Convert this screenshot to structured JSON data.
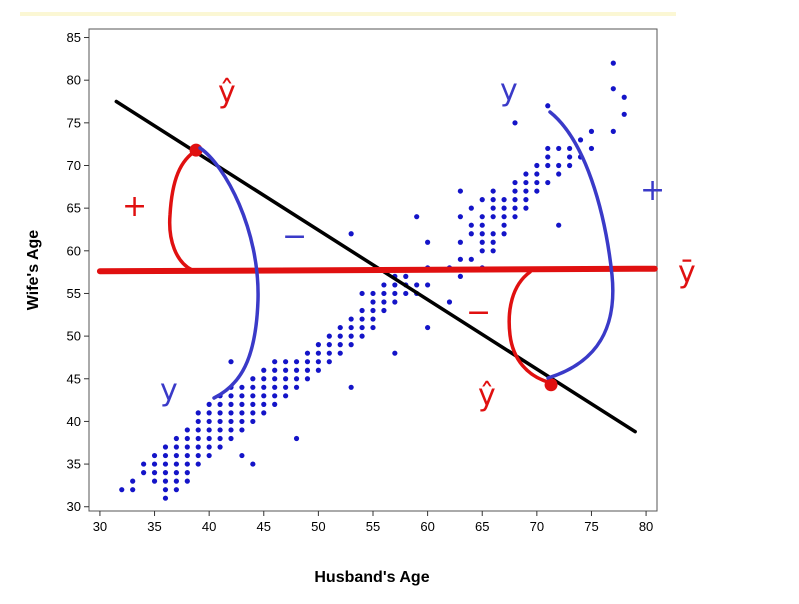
{
  "chart_data": {
    "type": "scatter",
    "xlabel": "Husband's Age",
    "ylabel": "Wife's Age",
    "xlim": [
      29,
      81
    ],
    "ylim": [
      29.5,
      86
    ],
    "xticks": [
      "30",
      "35",
      "40",
      "45",
      "50",
      "55",
      "60",
      "65",
      "70",
      "75",
      "80"
    ],
    "yticks": [
      "30",
      "35",
      "40",
      "45",
      "50",
      "55",
      "60",
      "65",
      "70",
      "75",
      "80",
      "85"
    ],
    "grid": false,
    "point_color": "#1414c8",
    "points": [
      [
        32,
        32
      ],
      [
        33,
        32
      ],
      [
        33,
        33
      ],
      [
        34,
        34
      ],
      [
        34,
        35
      ],
      [
        35,
        33
      ],
      [
        35,
        34
      ],
      [
        35,
        35
      ],
      [
        35,
        36
      ],
      [
        36,
        31
      ],
      [
        36,
        32
      ],
      [
        36,
        33
      ],
      [
        36,
        34
      ],
      [
        36,
        35
      ],
      [
        36,
        36
      ],
      [
        36,
        37
      ],
      [
        37,
        32
      ],
      [
        37,
        33
      ],
      [
        37,
        34
      ],
      [
        37,
        35
      ],
      [
        37,
        36
      ],
      [
        37,
        37
      ],
      [
        37,
        38
      ],
      [
        38,
        33
      ],
      [
        38,
        34
      ],
      [
        38,
        35
      ],
      [
        38,
        36
      ],
      [
        38,
        37
      ],
      [
        38,
        38
      ],
      [
        38,
        39
      ],
      [
        39,
        35
      ],
      [
        39,
        36
      ],
      [
        39,
        37
      ],
      [
        39,
        38
      ],
      [
        39,
        39
      ],
      [
        39,
        40
      ],
      [
        39,
        41
      ],
      [
        40,
        36
      ],
      [
        40,
        37
      ],
      [
        40,
        38
      ],
      [
        40,
        39
      ],
      [
        40,
        40
      ],
      [
        40,
        41
      ],
      [
        40,
        42
      ],
      [
        41,
        37
      ],
      [
        41,
        38
      ],
      [
        41,
        39
      ],
      [
        41,
        40
      ],
      [
        41,
        41
      ],
      [
        41,
        42
      ],
      [
        41,
        43
      ],
      [
        42,
        38
      ],
      [
        42,
        39
      ],
      [
        42,
        40
      ],
      [
        42,
        41
      ],
      [
        42,
        42
      ],
      [
        42,
        43
      ],
      [
        42,
        44
      ],
      [
        42,
        47
      ],
      [
        43,
        36
      ],
      [
        43,
        39
      ],
      [
        43,
        40
      ],
      [
        43,
        41
      ],
      [
        43,
        42
      ],
      [
        43,
        43
      ],
      [
        43,
        44
      ],
      [
        44,
        35
      ],
      [
        44,
        40
      ],
      [
        44,
        41
      ],
      [
        44,
        42
      ],
      [
        44,
        43
      ],
      [
        44,
        44
      ],
      [
        44,
        45
      ],
      [
        45,
        41
      ],
      [
        45,
        42
      ],
      [
        45,
        43
      ],
      [
        45,
        44
      ],
      [
        45,
        45
      ],
      [
        45,
        46
      ],
      [
        46,
        42
      ],
      [
        46,
        43
      ],
      [
        46,
        44
      ],
      [
        46,
        45
      ],
      [
        46,
        46
      ],
      [
        46,
        47
      ],
      [
        47,
        43
      ],
      [
        47,
        44
      ],
      [
        47,
        45
      ],
      [
        47,
        46
      ],
      [
        47,
        47
      ],
      [
        48,
        38
      ],
      [
        48,
        44
      ],
      [
        48,
        45
      ],
      [
        48,
        46
      ],
      [
        48,
        47
      ],
      [
        49,
        45
      ],
      [
        49,
        46
      ],
      [
        49,
        47
      ],
      [
        49,
        48
      ],
      [
        50,
        46
      ],
      [
        50,
        47
      ],
      [
        50,
        48
      ],
      [
        50,
        49
      ],
      [
        51,
        47
      ],
      [
        51,
        48
      ],
      [
        51,
        49
      ],
      [
        51,
        50
      ],
      [
        52,
        48
      ],
      [
        52,
        49
      ],
      [
        52,
        50
      ],
      [
        52,
        51
      ],
      [
        53,
        44
      ],
      [
        53,
        49
      ],
      [
        53,
        50
      ],
      [
        53,
        51
      ],
      [
        53,
        52
      ],
      [
        53,
        62
      ],
      [
        54,
        50
      ],
      [
        54,
        51
      ],
      [
        54,
        52
      ],
      [
        54,
        53
      ],
      [
        54,
        55
      ],
      [
        55,
        51
      ],
      [
        55,
        52
      ],
      [
        55,
        53
      ],
      [
        55,
        54
      ],
      [
        55,
        55
      ],
      [
        56,
        53
      ],
      [
        56,
        54
      ],
      [
        56,
        55
      ],
      [
        56,
        56
      ],
      [
        57,
        48
      ],
      [
        57,
        54
      ],
      [
        57,
        55
      ],
      [
        57,
        56
      ],
      [
        57,
        57
      ],
      [
        58,
        55
      ],
      [
        58,
        56
      ],
      [
        58,
        57
      ],
      [
        59,
        55
      ],
      [
        59,
        56
      ],
      [
        59,
        64
      ],
      [
        60,
        51
      ],
      [
        60,
        56
      ],
      [
        60,
        58
      ],
      [
        60,
        61
      ],
      [
        62,
        54
      ],
      [
        62,
        58
      ],
      [
        63,
        57
      ],
      [
        63,
        59
      ],
      [
        63,
        61
      ],
      [
        63,
        64
      ],
      [
        63,
        67
      ],
      [
        64,
        59
      ],
      [
        64,
        62
      ],
      [
        64,
        63
      ],
      [
        64,
        65
      ],
      [
        65,
        58
      ],
      [
        65,
        60
      ],
      [
        65,
        61
      ],
      [
        65,
        62
      ],
      [
        65,
        63
      ],
      [
        65,
        64
      ],
      [
        65,
        66
      ],
      [
        66,
        60
      ],
      [
        66,
        61
      ],
      [
        66,
        62
      ],
      [
        66,
        64
      ],
      [
        66,
        65
      ],
      [
        66,
        66
      ],
      [
        66,
        67
      ],
      [
        67,
        62
      ],
      [
        67,
        63
      ],
      [
        67,
        64
      ],
      [
        67,
        65
      ],
      [
        67,
        66
      ],
      [
        68,
        64
      ],
      [
        68,
        65
      ],
      [
        68,
        66
      ],
      [
        68,
        67
      ],
      [
        68,
        68
      ],
      [
        68,
        75
      ],
      [
        69,
        65
      ],
      [
        69,
        66
      ],
      [
        69,
        67
      ],
      [
        69,
        68
      ],
      [
        69,
        69
      ],
      [
        70,
        67
      ],
      [
        70,
        68
      ],
      [
        70,
        69
      ],
      [
        70,
        70
      ],
      [
        71,
        68
      ],
      [
        71,
        70
      ],
      [
        71,
        71
      ],
      [
        71,
        72
      ],
      [
        71,
        77
      ],
      [
        72,
        63
      ],
      [
        72,
        69
      ],
      [
        72,
        70
      ],
      [
        72,
        72
      ],
      [
        73,
        70
      ],
      [
        73,
        71
      ],
      [
        73,
        72
      ],
      [
        74,
        71
      ],
      [
        74,
        73
      ],
      [
        75,
        72
      ],
      [
        75,
        74
      ],
      [
        77,
        74
      ],
      [
        77,
        79
      ],
      [
        77,
        82
      ],
      [
        78,
        76
      ],
      [
        78,
        78
      ]
    ],
    "overlays": [
      {
        "kind": "line",
        "color": "#000000",
        "from": [
          31.5,
          77.5
        ],
        "to": [
          79,
          38.8
        ]
      },
      {
        "kind": "line",
        "color": "#e01010",
        "from": [
          30,
          57.6
        ],
        "to": [
          80.8,
          57.9
        ]
      }
    ],
    "highlight_points": [
      {
        "color": "#e01010",
        "point": [
          38.8,
          71.8
        ]
      },
      {
        "color": "#e01010",
        "point": [
          71.3,
          44.3
        ]
      }
    ]
  },
  "annotations": {
    "red_color": "#e01010",
    "blue_color": "#3a3ac8",
    "y_hat_top": "ŷ",
    "plus_left": "+",
    "minus_mid": "−",
    "minus_right": "−",
    "y_hat_bottom": "ŷ",
    "y_bar": "ȳ",
    "y_left": "y",
    "y_top_right": "y",
    "plus_right": "+"
  }
}
